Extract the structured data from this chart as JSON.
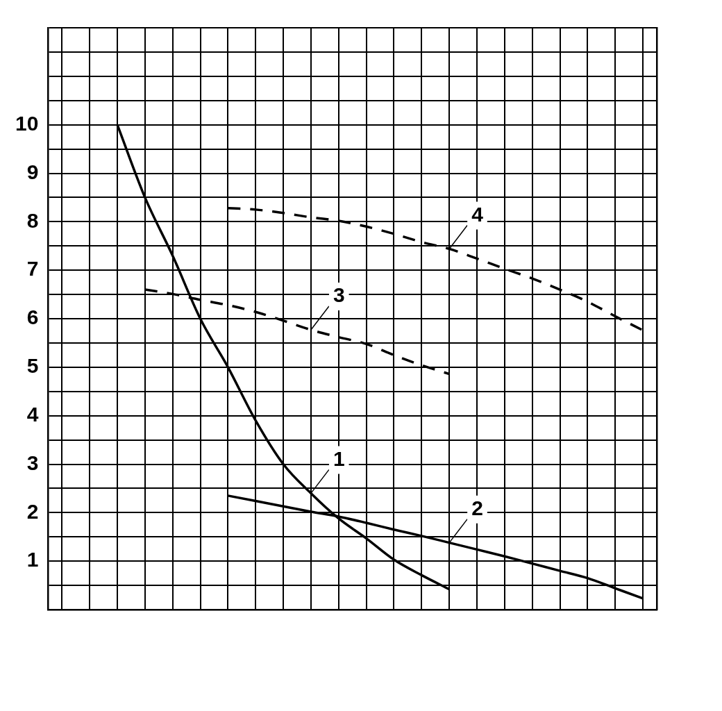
{
  "chart_data": {
    "type": "line",
    "categories": [
      null,
      null,
      null,
      null,
      null,
      null,
      null,
      null,
      null,
      null,
      null,
      null,
      null,
      null,
      null,
      null,
      null,
      null,
      null,
      null,
      null,
      null
    ],
    "ylim": [
      0,
      12
    ],
    "yticks": [
      {
        "value": 0,
        "label": null
      },
      {
        "value": 0.5,
        "label": null
      },
      1,
      {
        "value": 1.5,
        "label": null
      },
      2,
      {
        "value": 2.5,
        "label": null
      },
      3,
      {
        "value": 3.5,
        "label": null
      },
      4,
      {
        "value": 4.5,
        "label": null
      },
      5,
      {
        "value": 5.5,
        "label": null
      },
      6,
      {
        "value": 6.5,
        "label": null
      },
      7,
      {
        "value": 7.5,
        "label": null
      },
      8,
      {
        "value": 8.5,
        "label": null
      },
      9,
      {
        "value": 9.5,
        "label": null
      },
      10,
      {
        "value": 10.5,
        "label": null
      },
      {
        "value": 11,
        "label": null
      },
      {
        "value": 11.5,
        "label": null
      },
      {
        "value": 12,
        "label": null
      }
    ],
    "grid": true,
    "tick_labels": "y",
    "marker": "none",
    "series": [
      {
        "name": "1",
        "color": "#000000",
        "line_style": "solid",
        "values": [
          null,
          null,
          10,
          8.5,
          7.3,
          6.0,
          5.0,
          3.9,
          3.0,
          2.4,
          1.88,
          1.47,
          1.03,
          0.71,
          0.42,
          null,
          null,
          null,
          null,
          null,
          null,
          null
        ]
      },
      {
        "name": "2",
        "color": "#000000",
        "line_style": "solid",
        "values": [
          null,
          null,
          null,
          null,
          null,
          null,
          2.35,
          2.24,
          2.13,
          2.02,
          1.92,
          1.79,
          1.65,
          1.52,
          1.38,
          1.24,
          1.1,
          0.95,
          0.8,
          0.65,
          0.44,
          0.23
        ]
      },
      {
        "name": "3",
        "color": "#000000",
        "line_style": "dashed",
        "values": [
          null,
          null,
          null,
          6.6,
          6.51,
          6.39,
          6.28,
          6.14,
          5.96,
          5.77,
          5.62,
          5.48,
          5.25,
          5.04,
          4.86,
          null,
          null,
          null,
          null,
          null,
          null,
          null
        ]
      },
      {
        "name": "4",
        "color": "#000000",
        "line_style": "dashed",
        "values": [
          null,
          null,
          null,
          null,
          null,
          null,
          8.28,
          8.25,
          8.18,
          8.09,
          8.02,
          7.9,
          7.75,
          7.58,
          7.44,
          7.24,
          7.03,
          6.83,
          6.6,
          6.35,
          6.05,
          5.76
        ]
      }
    ]
  }
}
